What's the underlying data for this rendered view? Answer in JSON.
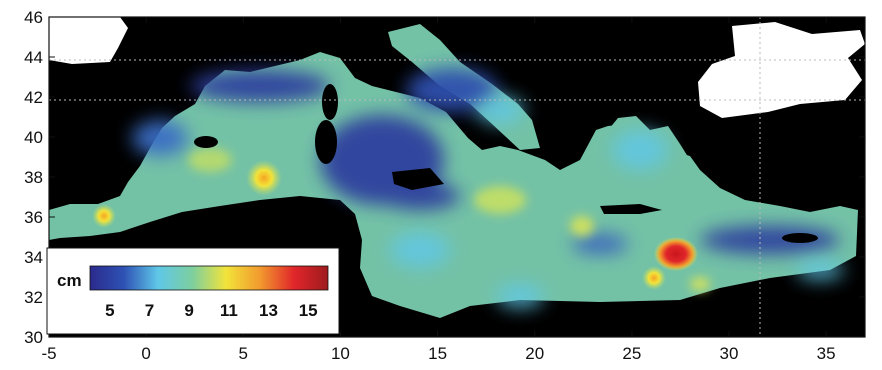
{
  "map": {
    "colors": {
      "sea_base": "#74c2a6",
      "land": "#000000",
      "no_data": "#ffffff",
      "deep_blue": "#2e3f9e",
      "cyan": "#5fc7e8",
      "yellow": "#f2e33a",
      "red": "#e0262a"
    }
  },
  "axes": {
    "x_ticks": [
      "-5",
      "0",
      "5",
      "10",
      "15",
      "20",
      "25",
      "30",
      "35"
    ],
    "y_ticks": [
      "46",
      "44",
      "42",
      "40",
      "38",
      "36",
      "34",
      "32",
      "30"
    ],
    "xlim": [
      -5,
      37
    ],
    "ylim": [
      30,
      46
    ]
  },
  "colorbar": {
    "unit": "cm",
    "ticks": [
      "5",
      "7",
      "9",
      "11",
      "13",
      "15"
    ],
    "stops": [
      "#2b2a8c",
      "#2e52b5",
      "#5fc7e8",
      "#7ccfa0",
      "#f2e33a",
      "#f29a2e",
      "#e0262a",
      "#9e1b1e"
    ]
  }
}
